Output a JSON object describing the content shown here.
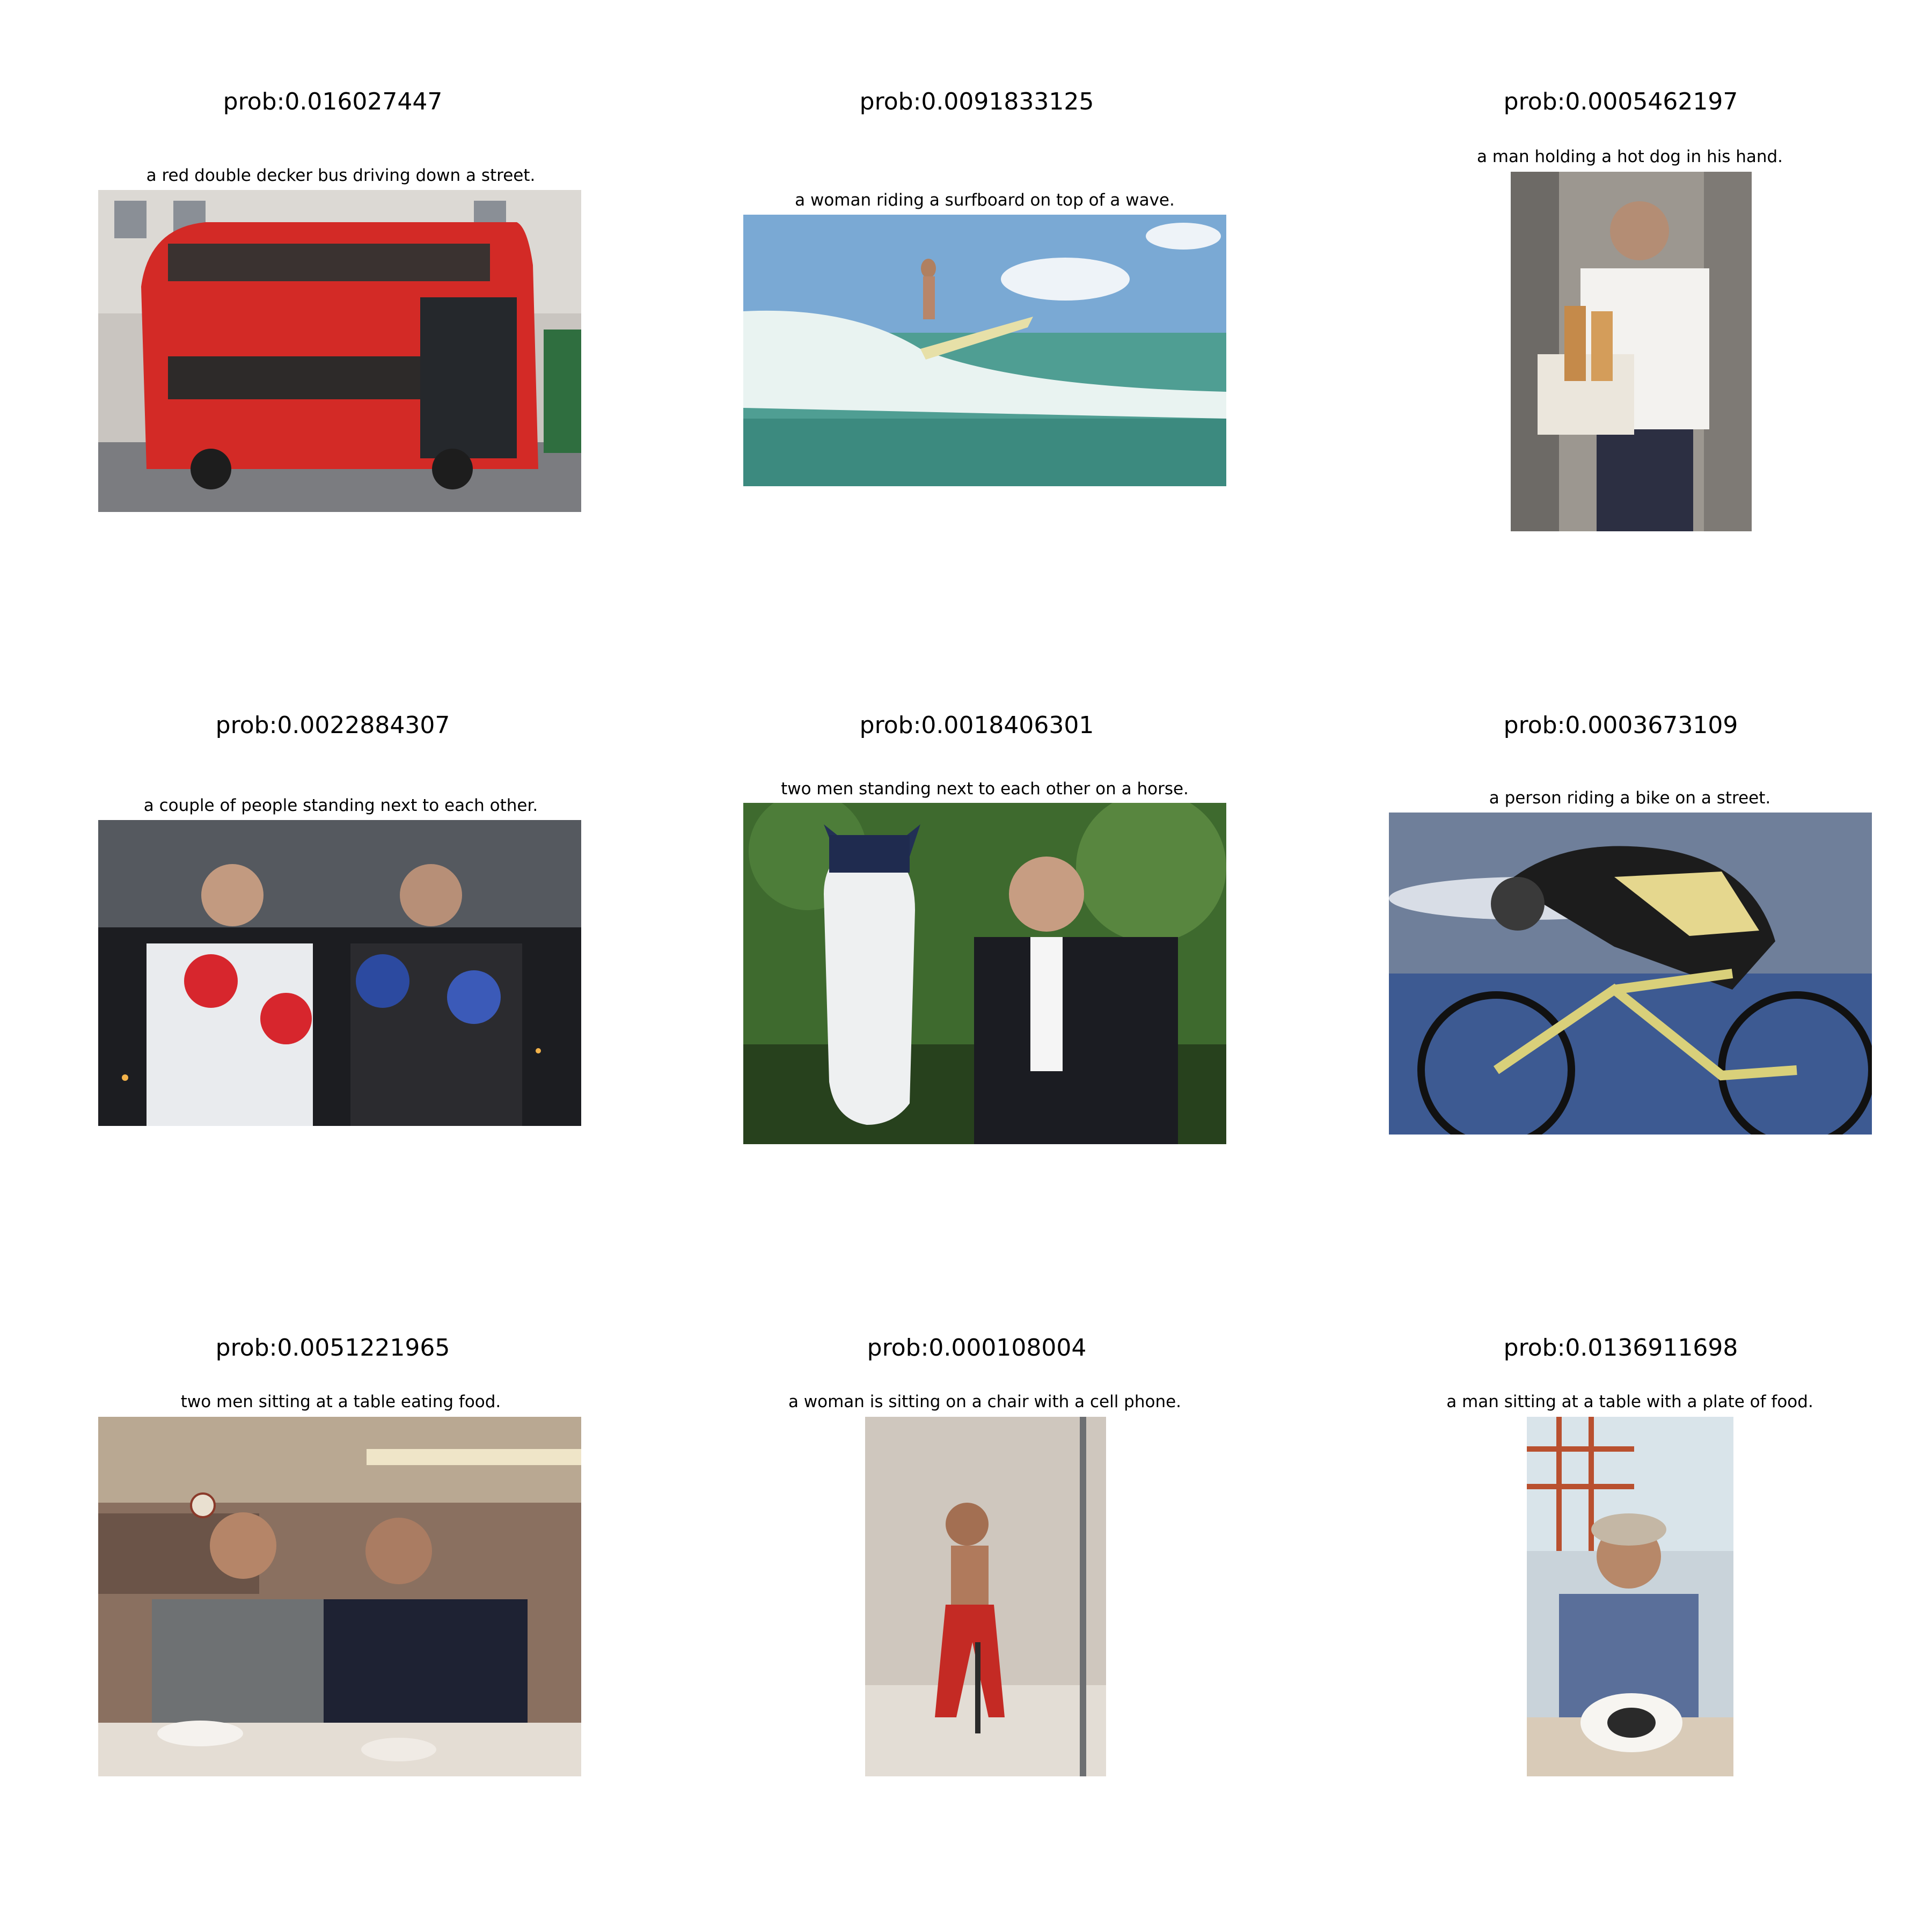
{
  "panels": [
    {
      "prob": "prob:0.016027447",
      "caption": "a red double decker bus driving down a street."
    },
    {
      "prob": "prob:0.0091833125",
      "caption": "a woman riding a surfboard on top of a wave."
    },
    {
      "prob": "prob:0.0005462197",
      "caption": "a man holding a hot dog in his hand."
    },
    {
      "prob": "prob:0.0022884307",
      "caption": "a couple of people standing next to each other."
    },
    {
      "prob": "prob:0.0018406301",
      "caption": "two men standing next to each other on a horse."
    },
    {
      "prob": "prob:0.0003673109",
      "caption": "a person riding a bike on a street."
    },
    {
      "prob": "prob:0.0051221965",
      "caption": "two men sitting at a table eating food."
    },
    {
      "prob": "prob:0.000108004",
      "caption": "a woman is sitting on a chair with a cell phone."
    },
    {
      "prob": "prob:0.0136911698",
      "caption": "a man sitting at a table with a plate of food."
    }
  ]
}
